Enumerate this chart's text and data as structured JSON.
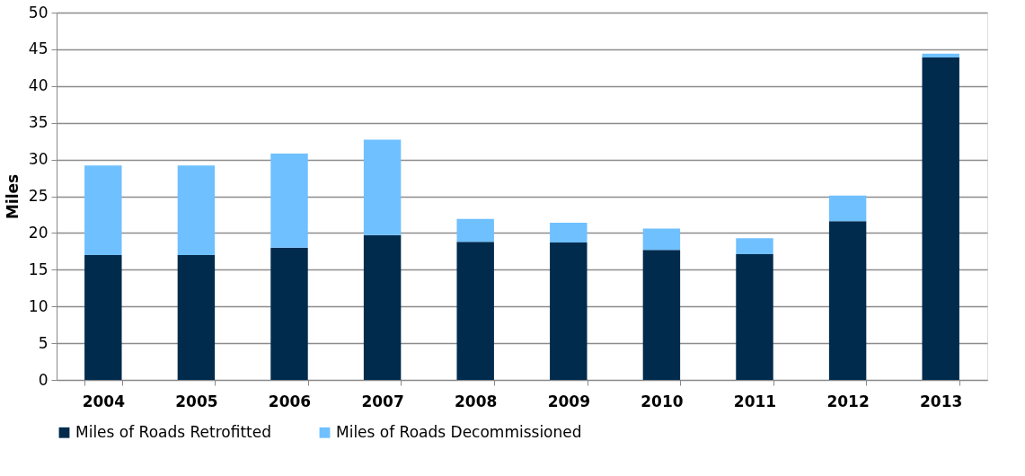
{
  "chart_data": {
    "type": "bar",
    "stacked": true,
    "ylabel": "Miles",
    "categories": [
      "2004",
      "2005",
      "2006",
      "2007",
      "2008",
      "2009",
      "2010",
      "2011",
      "2012",
      "2013"
    ],
    "series": [
      {
        "name": "Miles of Roads Retrofitted",
        "color": "#002b4d",
        "values": [
          17.0,
          17.0,
          18.0,
          19.7,
          18.8,
          18.7,
          17.7,
          17.1,
          21.6,
          43.9
        ]
      },
      {
        "name": "Miles of Roads Decommissioned",
        "color": "#6fc0ff",
        "values": [
          12.2,
          12.2,
          12.8,
          13.0,
          3.1,
          2.7,
          2.9,
          2.2,
          3.5,
          0.5
        ]
      }
    ],
    "ylim": [
      0,
      50
    ],
    "yticks": [
      0,
      5,
      10,
      15,
      20,
      25,
      30,
      35,
      40,
      45,
      50
    ],
    "grid": "y",
    "legend": "bottom"
  }
}
